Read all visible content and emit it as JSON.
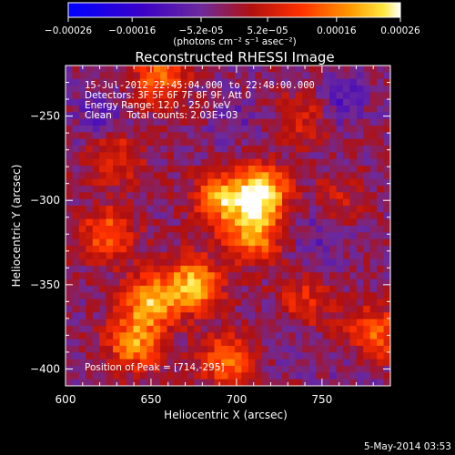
{
  "chart_data": {
    "type": "heatmap",
    "title": "Reconstructed RHESSI Image",
    "xlabel": "Heliocentric X (arcsec)",
    "ylabel": "Heliocentric Y (arcsec)",
    "xlim": [
      600,
      790
    ],
    "ylim": [
      -410,
      -220
    ],
    "xticks": [
      600,
      650,
      700,
      750
    ],
    "yticks": [
      -400,
      -350,
      -300,
      -250
    ],
    "colorbar": {
      "ticks": [
        "-0.00026",
        "-0.00016",
        "-5.2e-05",
        "5.2e-05",
        "0.00016",
        "0.00026"
      ],
      "min": -0.00026,
      "max": 0.00026,
      "unit_text": "(photons cm⁻² s⁻¹ asec⁻²)"
    },
    "annotations": [
      "15-Jul-2012 22:45:04.000 to 22:48:00.000",
      "Detectors: 3F 5F 6F 7F 8F 9F, Att 0",
      "Energy Range: 12.0 - 25.0 keV",
      "Clean     Total counts: 2.03E+03",
      "Position of Peak = [714,-295]"
    ],
    "peak": [
      714,
      -295
    ],
    "bright_regions": [
      {
        "x": 714,
        "y": -295,
        "value": 0.00026
      },
      {
        "x": 690,
        "y": -300,
        "value": 0.00017
      },
      {
        "x": 710,
        "y": -320,
        "value": 0.00018
      },
      {
        "x": 650,
        "y": -360,
        "value": 0.0002
      },
      {
        "x": 675,
        "y": -350,
        "value": 0.00021
      },
      {
        "x": 625,
        "y": -320,
        "value": 0.00014
      },
      {
        "x": 640,
        "y": -385,
        "value": 0.00017
      },
      {
        "x": 695,
        "y": -395,
        "value": 0.00015
      },
      {
        "x": 740,
        "y": -360,
        "value": 8e-05
      },
      {
        "x": 780,
        "y": -380,
        "value": 0.00016
      },
      {
        "x": 655,
        "y": -228,
        "value": 0.00014
      },
      {
        "x": 630,
        "y": -275,
        "value": 9e-05
      },
      {
        "x": 740,
        "y": -250,
        "value": 7e-05
      },
      {
        "x": 760,
        "y": -300,
        "value": 5e-05
      }
    ],
    "dark_regions": [
      {
        "x": 760,
        "y": -240,
        "value": -0.0001
      },
      {
        "x": 750,
        "y": -320,
        "value": -8e-05
      },
      {
        "x": 620,
        "y": -250,
        "value": -8e-05
      },
      {
        "x": 700,
        "y": -250,
        "value": -6e-05
      },
      {
        "x": 770,
        "y": -395,
        "value": -6e-05
      },
      {
        "x": 725,
        "y": -385,
        "value": -5e-05
      }
    ],
    "background_value": -2e-05,
    "grid": false,
    "colormap": "blue-purple-red-yellow-white"
  },
  "footer": {
    "date_text": "5-May-2014 03:53"
  }
}
